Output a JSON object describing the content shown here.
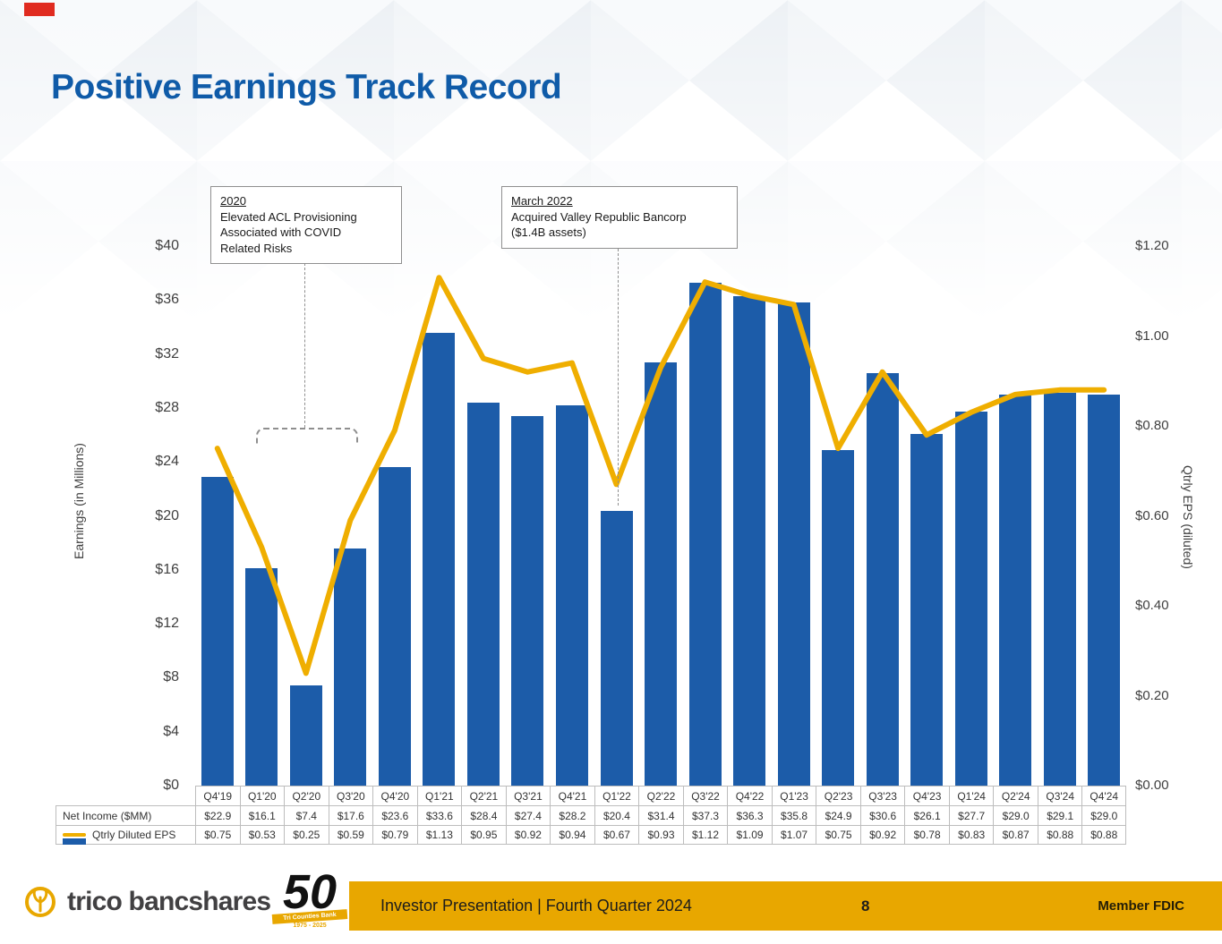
{
  "slide": {
    "title": "Positive Earnings Track Record"
  },
  "chart_data": {
    "type": "bar",
    "subtype": "combo-bar-line",
    "categories": [
      "Q4'19",
      "Q1'20",
      "Q2'20",
      "Q3'20",
      "Q4'20",
      "Q1'21",
      "Q2'21",
      "Q3'21",
      "Q4'21",
      "Q1'22",
      "Q2'22",
      "Q3'22",
      "Q4'22",
      "Q1'23",
      "Q2'23",
      "Q3'23",
      "Q4'23",
      "Q1'24",
      "Q2'24",
      "Q3'24",
      "Q4'24"
    ],
    "series": [
      {
        "name": "Net Income ($MM)",
        "type": "bar",
        "axis": "left",
        "color": "#1c5ca9",
        "values": [
          22.9,
          16.1,
          7.4,
          17.6,
          23.6,
          33.6,
          28.4,
          27.4,
          28.2,
          20.4,
          31.4,
          37.3,
          36.3,
          35.8,
          24.9,
          30.6,
          26.1,
          27.7,
          29.0,
          29.1,
          29.0
        ]
      },
      {
        "name": "Qtrly Diluted EPS",
        "type": "line",
        "axis": "right",
        "color": "#efae00",
        "values": [
          0.75,
          0.53,
          0.25,
          0.59,
          0.79,
          1.13,
          0.95,
          0.92,
          0.94,
          0.67,
          0.93,
          1.12,
          1.09,
          1.07,
          0.75,
          0.92,
          0.78,
          0.83,
          0.87,
          0.88,
          0.88
        ]
      }
    ],
    "left_axis": {
      "label": "Earnings (in Millions)",
      "min": 0,
      "max": 40,
      "ticks": [
        "$0",
        "$4",
        "$8",
        "$12",
        "$16",
        "$20",
        "$24",
        "$28",
        "$32",
        "$36",
        "$40"
      ]
    },
    "right_axis": {
      "label": "Qtrly EPS (diluted)",
      "min": 0,
      "max": 1.2,
      "ticks": [
        "$0.00",
        "$0.20",
        "$0.40",
        "$0.60",
        "$0.80",
        "$1.00",
        "$1.20"
      ]
    },
    "grid": false,
    "legend_position": "bottom-table"
  },
  "table": {
    "rows": [
      {
        "legend": "Net Income ($MM)",
        "swatch": "bar",
        "values": [
          "$22.9",
          "$16.1",
          "$7.4",
          "$17.6",
          "$23.6",
          "$33.6",
          "$28.4",
          "$27.4",
          "$28.2",
          "$20.4",
          "$31.4",
          "$37.3",
          "$36.3",
          "$35.8",
          "$24.9",
          "$30.6",
          "$26.1",
          "$27.7",
          "$29.0",
          "$29.1",
          "$29.0"
        ]
      },
      {
        "legend": "Qtrly Diluted EPS",
        "swatch": "line",
        "values": [
          "$0.75",
          "$0.53",
          "$0.25",
          "$0.59",
          "$0.79",
          "$1.13",
          "$0.95",
          "$0.92",
          "$0.94",
          "$0.67",
          "$0.93",
          "$1.12",
          "$1.09",
          "$1.07",
          "$0.75",
          "$0.92",
          "$0.78",
          "$0.83",
          "$0.87",
          "$0.88",
          "$0.88"
        ]
      }
    ]
  },
  "annotations": [
    {
      "heading": "2020",
      "lines": [
        "Elevated ACL Provisioning",
        "Associated with COVID",
        "Related Risks"
      ]
    },
    {
      "heading": "March 2022",
      "lines": [
        "Acquired Valley Republic Bancorp",
        "($1.4B assets)"
      ]
    }
  ],
  "footer": {
    "logo_text": "trico bancshares",
    "anniversary_number": "50",
    "anniversary_bank": "Tri Counties Bank",
    "anniversary_years": "1975 - 2025",
    "presentation": "Investor Presentation  |  Fourth Quarter 2024",
    "page_number": "8",
    "member": "Member FDIC"
  },
  "colors": {
    "title": "#0f5ba8",
    "bar": "#1c5ca9",
    "line": "#efae00",
    "footer_bar": "#e8a700"
  }
}
